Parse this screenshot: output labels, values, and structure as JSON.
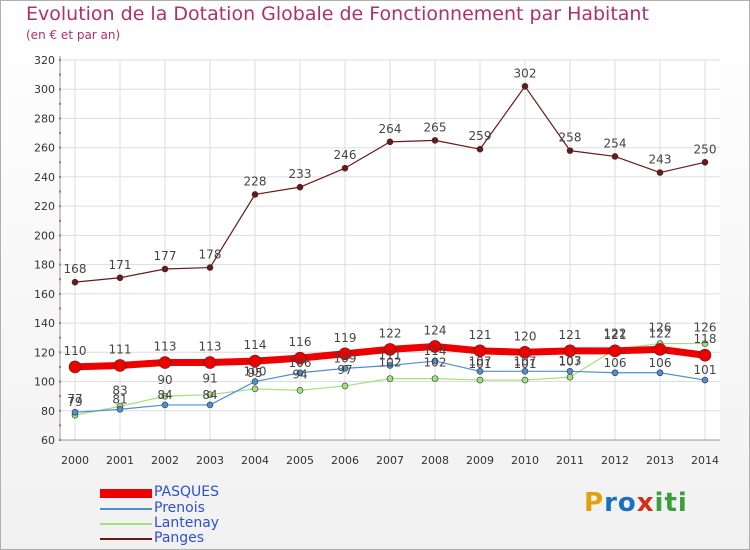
{
  "header": {
    "title": "Evolution de la Dotation Globale de Fonctionnement par Habitant",
    "subtitle": "(en € et par an)"
  },
  "logo": {
    "text": "Proxiti"
  },
  "colors": {
    "PASQUES": "#ee0000",
    "Prenois": "#4f8fd0",
    "Lantenay": "#9fe07f",
    "Panges": "#6b1818",
    "grid": "#dddddd",
    "axis_text": "#333333"
  },
  "chart_data": {
    "type": "line",
    "x": [
      "2000",
      "2001",
      "2002",
      "2003",
      "2004",
      "2005",
      "2006",
      "2007",
      "2008",
      "2009",
      "2010",
      "2011",
      "2012",
      "2013",
      "2014"
    ],
    "ylim": [
      60,
      320
    ],
    "yticks": [
      60,
      80,
      100,
      120,
      140,
      160,
      180,
      200,
      220,
      240,
      260,
      280,
      300,
      320
    ],
    "grid": true,
    "legend_position": "bottom-left",
    "series": [
      {
        "name": "PASQUES",
        "values": [
          110,
          111,
          113,
          113,
          114,
          116,
          119,
          122,
          124,
          121,
          120,
          121,
          121,
          122,
          118
        ]
      },
      {
        "name": "Prenois",
        "values": [
          79,
          81,
          84,
          84,
          100,
          106,
          109,
          111,
          114,
          107,
          107,
          107,
          106,
          106,
          101
        ]
      },
      {
        "name": "Lantenay",
        "values": [
          77,
          83,
          90,
          91,
          95,
          94,
          97,
          102,
          102,
          101,
          101,
          103,
          122,
          126,
          126
        ]
      },
      {
        "name": "Panges",
        "values": [
          168,
          171,
          177,
          178,
          228,
          233,
          246,
          264,
          265,
          259,
          302,
          258,
          254,
          243,
          250
        ]
      }
    ]
  }
}
